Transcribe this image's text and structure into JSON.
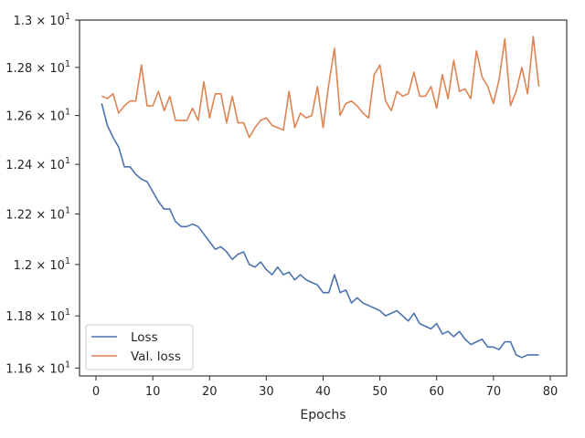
{
  "chart_data": {
    "type": "line",
    "title": "",
    "xlabel": "Epochs",
    "ylabel": "",
    "yscale": "log",
    "xlim": [
      -2.9,
      82.9
    ],
    "ylim": [
      11.57,
      13.0
    ],
    "grid": false,
    "legend_position": "lower-left",
    "x_ticks": [
      0,
      10,
      20,
      30,
      40,
      50,
      60,
      70,
      80
    ],
    "y_ticks": [
      {
        "value": 11.6,
        "mantissa": "1.16",
        "exp": "1"
      },
      {
        "value": 11.8,
        "mantissa": "1.18",
        "exp": "1"
      },
      {
        "value": 12.0,
        "mantissa": "1.2",
        "exp": "1"
      },
      {
        "value": 12.2,
        "mantissa": "1.22",
        "exp": "1"
      },
      {
        "value": 12.4,
        "mantissa": "1.24",
        "exp": "1"
      },
      {
        "value": 12.6,
        "mantissa": "1.26",
        "exp": "1"
      },
      {
        "value": 12.8,
        "mantissa": "1.28",
        "exp": "1"
      },
      {
        "value": 13.0,
        "mantissa": "1.3",
        "exp": "1"
      }
    ],
    "x": [
      1,
      2,
      3,
      4,
      5,
      6,
      7,
      8,
      9,
      10,
      11,
      12,
      13,
      14,
      15,
      16,
      17,
      18,
      19,
      20,
      21,
      22,
      23,
      24,
      25,
      26,
      27,
      28,
      29,
      30,
      31,
      32,
      33,
      34,
      35,
      36,
      37,
      38,
      39,
      40,
      41,
      42,
      43,
      44,
      45,
      46,
      47,
      48,
      49,
      50,
      51,
      52,
      53,
      54,
      55,
      56,
      57,
      58,
      59,
      60,
      61,
      62,
      63,
      64,
      65,
      66,
      67,
      68,
      69,
      70,
      71,
      72,
      73,
      74,
      75,
      76,
      77,
      78
    ],
    "series": [
      {
        "name": "Loss",
        "color": "#4c72b0",
        "values": [
          12.65,
          12.56,
          12.51,
          12.47,
          12.39,
          12.39,
          12.36,
          12.34,
          12.33,
          12.29,
          12.25,
          12.22,
          12.22,
          12.17,
          12.15,
          12.15,
          12.16,
          12.15,
          12.12,
          12.09,
          12.06,
          12.07,
          12.05,
          12.02,
          12.04,
          12.05,
          12.0,
          11.99,
          12.01,
          11.98,
          11.96,
          11.99,
          11.96,
          11.97,
          11.94,
          11.96,
          11.94,
          11.93,
          11.92,
          11.89,
          11.89,
          11.96,
          11.89,
          11.9,
          11.85,
          11.87,
          11.85,
          11.84,
          11.83,
          11.82,
          11.8,
          11.81,
          11.82,
          11.8,
          11.78,
          11.81,
          11.77,
          11.76,
          11.75,
          11.77,
          11.73,
          11.74,
          11.72,
          11.74,
          11.71,
          11.69,
          11.7,
          11.71,
          11.68,
          11.68,
          11.67,
          11.7,
          11.7,
          11.65,
          11.64,
          11.65,
          11.65,
          11.65
        ]
      },
      {
        "name": "Val. loss",
        "color": "#dd8452",
        "values": [
          12.68,
          12.67,
          12.69,
          12.61,
          12.64,
          12.66,
          12.66,
          12.81,
          12.64,
          12.64,
          12.7,
          12.62,
          12.68,
          12.58,
          12.58,
          12.58,
          12.63,
          12.58,
          12.74,
          12.59,
          12.69,
          12.69,
          12.57,
          12.68,
          12.57,
          12.57,
          12.51,
          12.55,
          12.58,
          12.59,
          12.56,
          12.55,
          12.54,
          12.7,
          12.55,
          12.61,
          12.59,
          12.6,
          12.72,
          12.55,
          12.73,
          12.88,
          12.6,
          12.65,
          12.66,
          12.64,
          12.61,
          12.59,
          12.77,
          12.81,
          12.66,
          12.62,
          12.7,
          12.68,
          12.69,
          12.78,
          12.68,
          12.68,
          12.72,
          12.63,
          12.77,
          12.67,
          12.83,
          12.7,
          12.71,
          12.67,
          12.87,
          12.76,
          12.72,
          12.65,
          12.75,
          12.92,
          12.64,
          12.7,
          12.8,
          12.69,
          12.93,
          12.72
        ]
      }
    ]
  }
}
